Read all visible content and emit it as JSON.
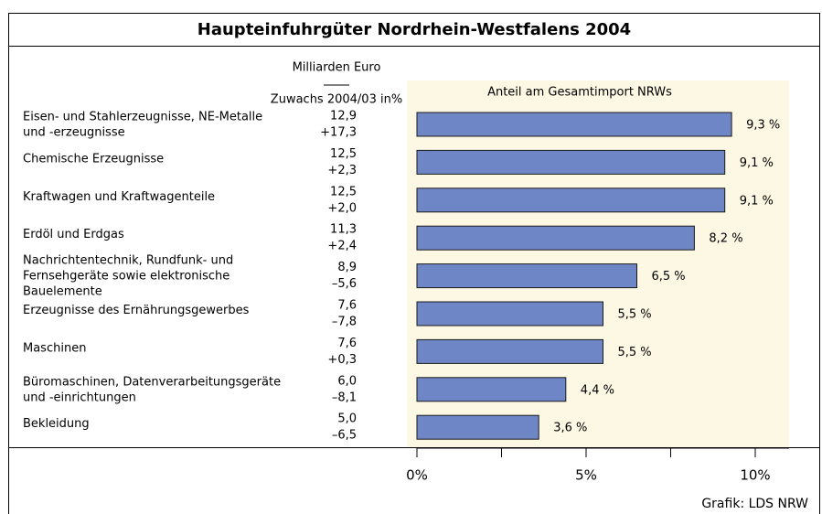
{
  "chart_data": {
    "type": "bar",
    "orientation": "horizontal",
    "title": "Haupteinfuhrgüter Nordrhein-Westfalens 2004",
    "xlabel": "Anteil am Gesamtimport NRWs",
    "source": "Grafik: LDS NRW",
    "categories": [
      "Eisen- und Stahlerzeugnisse, NE-Metalle\nund -erzeugnisse",
      "Chemische Erzeugnisse",
      "Kraftwagen und Kraftwagenteile",
      "Erdöl und Erdgas",
      "Nachrichtentechnik, Rundfunk- und\nFernsehgeräte sowie elektronische\nBauelemente",
      "Erzeugnisse des Ernährungsgewerbes",
      "Maschinen",
      "Büromaschinen, Datenverarbeitungsgeräte\nund -einrichtungen",
      "Bekleidung"
    ],
    "values": [
      9.3,
      9.1,
      9.1,
      8.2,
      6.5,
      5.5,
      5.5,
      4.4,
      3.6
    ],
    "value_labels": [
      "9,3 %",
      "9,1 %",
      "9,1 %",
      "8,2 %",
      "6,5 %",
      "5,5 %",
      "5,5 %",
      "4,4 %",
      "3,6 %"
    ],
    "columns": [
      {
        "name": "Milliarden Euro",
        "values": [
          "12,9",
          "12,5",
          "12,5",
          "11,3",
          "8,9",
          "7,6",
          "7,6",
          "6,0",
          "5,0"
        ]
      },
      {
        "name": "Zuwachs 2004/03 in%",
        "values": [
          "+17,3",
          "+2,3",
          "+2,0",
          "+2,4",
          "–5,6",
          "–7,8",
          "+0,3",
          "–8,1",
          "–6,5"
        ]
      }
    ],
    "color": "#6f86c6",
    "xlim": [
      0,
      11
    ],
    "xticks": [
      {
        "value": 0,
        "label": "0%"
      },
      {
        "value": 5,
        "label": "5%"
      },
      {
        "value": 10,
        "label": "10%"
      }
    ],
    "minor_xticks": [
      2.5,
      7.5
    ]
  }
}
